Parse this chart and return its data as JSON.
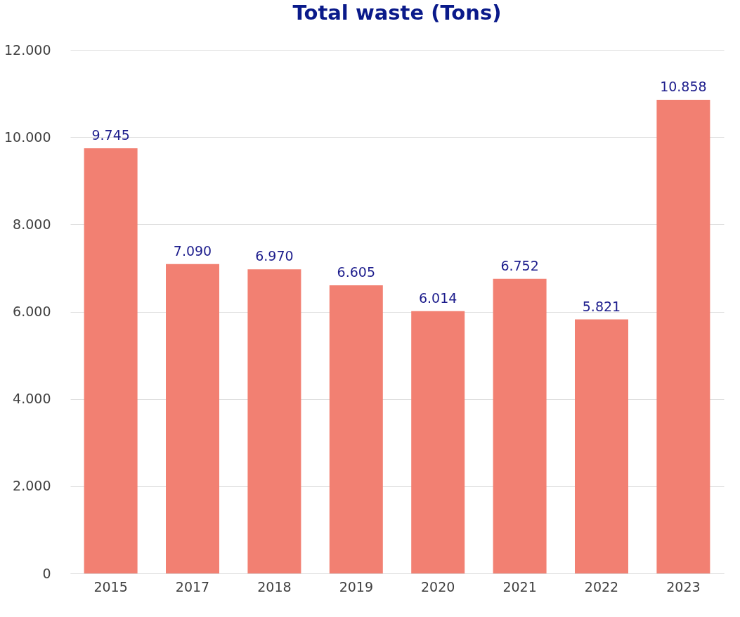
{
  "chart_data": {
    "type": "bar",
    "title": "Total waste (Tons)",
    "categories": [
      "2015",
      "2017",
      "2018",
      "2019",
      "2020",
      "2021",
      "2022",
      "2023"
    ],
    "values": [
      9745,
      7090,
      6970,
      6605,
      6014,
      6752,
      5821,
      10858
    ],
    "value_labels": [
      "9.745",
      "7.090",
      "6.970",
      "6.605",
      "6.014",
      "6.752",
      "5.821",
      "10.858"
    ],
    "color": "#f28072",
    "ylim": [
      0,
      12000
    ],
    "yticks": [
      0,
      {
        "value": 2000,
        "label": "2.000"
      },
      {
        "value": 4000,
        "label": "4.000"
      },
      {
        "value": 6000,
        "label": "6.000"
      },
      {
        "value": 8000,
        "label": "8.000"
      },
      {
        "value": 10000,
        "label": "10.000"
      },
      {
        "value": 12000,
        "label": "12.000"
      }
    ],
    "grid": "y"
  }
}
